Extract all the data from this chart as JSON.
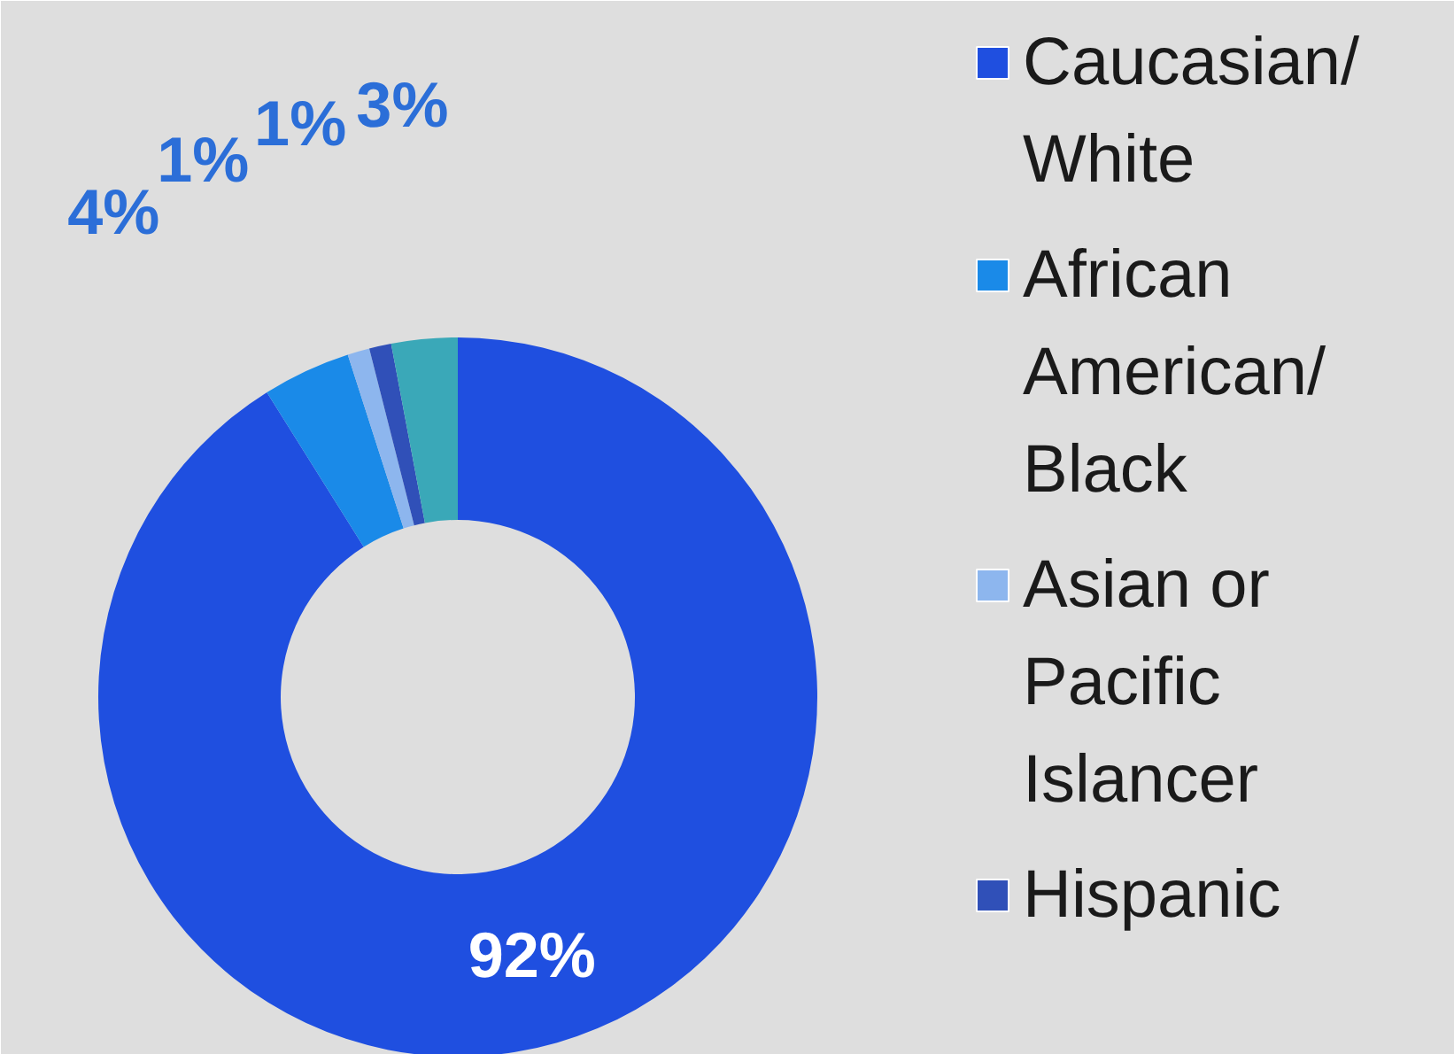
{
  "chart_data": {
    "type": "donut",
    "categories": [
      "Caucasian/ White",
      "African American/ Black",
      "Asian or Pacific Islancer",
      "Hispanic",
      null
    ],
    "values": [
      92,
      4,
      1,
      1,
      3
    ],
    "colors": [
      "#1f4fe0",
      "#1a8ae8",
      "#8db6ee",
      "#3050b8",
      "#3aa8b8"
    ],
    "value_labels": [
      "92%",
      "4%",
      "1%",
      "1%",
      "3%"
    ],
    "legend": "right"
  }
}
